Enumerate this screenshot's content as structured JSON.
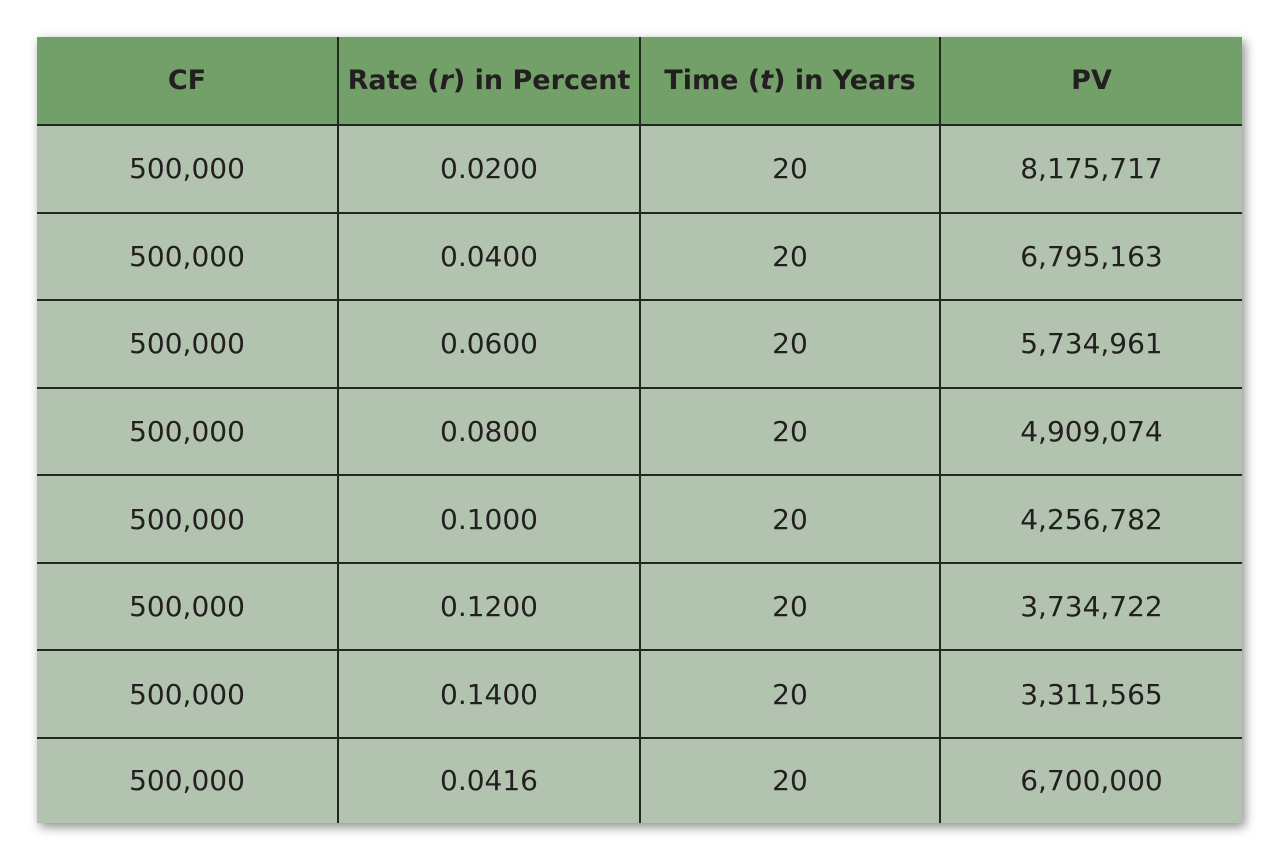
{
  "headers": {
    "cf": "CF",
    "rate_prefix": "Rate (",
    "rate_var": "r",
    "rate_suffix": ") in Percent",
    "time_prefix": "Time (",
    "time_var": "t",
    "time_suffix": ") in Years",
    "pv": "PV"
  },
  "rows": [
    {
      "cf": "500,000",
      "rate": "0.0200",
      "time": "20",
      "pv": "8,175,717"
    },
    {
      "cf": "500,000",
      "rate": "0.0400",
      "time": "20",
      "pv": "6,795,163"
    },
    {
      "cf": "500,000",
      "rate": "0.0600",
      "time": "20",
      "pv": "5,734,961"
    },
    {
      "cf": "500,000",
      "rate": "0.0800",
      "time": "20",
      "pv": "4,909,074"
    },
    {
      "cf": "500,000",
      "rate": "0.1000",
      "time": "20",
      "pv": "4,256,782"
    },
    {
      "cf": "500,000",
      "rate": "0.1200",
      "time": "20",
      "pv": "3,734,722"
    },
    {
      "cf": "500,000",
      "rate": "0.1400",
      "time": "20",
      "pv": "3,311,565"
    },
    {
      "cf": "500,000",
      "rate": "0.0416",
      "time": "20",
      "pv": "6,700,000"
    }
  ],
  "colors": {
    "header_bg": "#739f68",
    "cell_bg": "#b2c4b0",
    "border": "#1f2a1e",
    "text": "#231f20"
  }
}
